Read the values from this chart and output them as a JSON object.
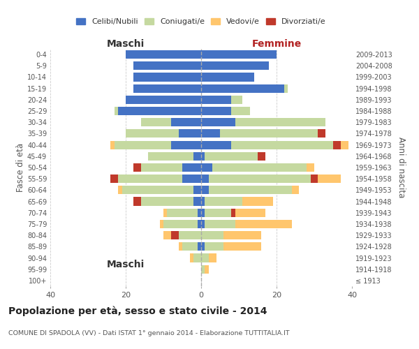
{
  "age_groups": [
    "100+",
    "95-99",
    "90-94",
    "85-89",
    "80-84",
    "75-79",
    "70-74",
    "65-69",
    "60-64",
    "55-59",
    "50-54",
    "45-49",
    "40-44",
    "35-39",
    "30-34",
    "25-29",
    "20-24",
    "15-19",
    "10-14",
    "5-9",
    "0-4"
  ],
  "birth_years": [
    "≤ 1913",
    "1914-1918",
    "1919-1923",
    "1924-1928",
    "1929-1933",
    "1934-1938",
    "1939-1943",
    "1944-1948",
    "1949-1953",
    "1954-1958",
    "1959-1963",
    "1964-1968",
    "1969-1973",
    "1974-1978",
    "1979-1983",
    "1984-1988",
    "1989-1993",
    "1994-1998",
    "1999-2003",
    "2004-2008",
    "2009-2013"
  ],
  "male": {
    "celibi": [
      0,
      0,
      0,
      1,
      0,
      1,
      1,
      2,
      2,
      5,
      5,
      2,
      8,
      6,
      8,
      22,
      20,
      18,
      18,
      18,
      20
    ],
    "coniugati": [
      0,
      0,
      2,
      4,
      6,
      9,
      8,
      14,
      19,
      17,
      11,
      12,
      15,
      14,
      8,
      1,
      0,
      0,
      0,
      0,
      0
    ],
    "vedovi": [
      0,
      0,
      1,
      1,
      2,
      1,
      1,
      0,
      1,
      0,
      0,
      0,
      1,
      0,
      0,
      0,
      0,
      0,
      0,
      0,
      0
    ],
    "divorziati": [
      0,
      0,
      0,
      0,
      2,
      0,
      0,
      2,
      0,
      2,
      2,
      0,
      0,
      0,
      0,
      0,
      0,
      0,
      0,
      0,
      0
    ]
  },
  "female": {
    "nubili": [
      0,
      0,
      0,
      1,
      0,
      1,
      1,
      1,
      2,
      2,
      3,
      1,
      8,
      5,
      9,
      8,
      8,
      22,
      14,
      18,
      20
    ],
    "coniugate": [
      0,
      1,
      2,
      5,
      6,
      8,
      7,
      10,
      22,
      27,
      25,
      14,
      27,
      26,
      24,
      5,
      3,
      1,
      0,
      0,
      0
    ],
    "vedove": [
      0,
      1,
      2,
      10,
      10,
      15,
      8,
      8,
      2,
      6,
      2,
      0,
      2,
      0,
      0,
      0,
      0,
      0,
      0,
      0,
      0
    ],
    "divorziate": [
      0,
      0,
      0,
      0,
      0,
      0,
      1,
      0,
      0,
      2,
      0,
      2,
      2,
      2,
      0,
      0,
      0,
      0,
      0,
      0,
      0
    ]
  },
  "colors": {
    "celibi": "#4472c4",
    "coniugati": "#c5d9a0",
    "vedovi": "#ffc66d",
    "divorziati": "#c0392b"
  },
  "xlim": 40,
  "title": "Popolazione per età, sesso e stato civile - 2014",
  "subtitle": "COMUNE DI SPADOLA (VV) - Dati ISTAT 1° gennaio 2014 - Elaborazione TUTTITALIA.IT",
  "ylabel": "Fasce di età",
  "ylabel_right": "Anni di nascita",
  "xlabel_left": "Maschi",
  "xlabel_right": "Femmine",
  "legend_labels": [
    "Celibi/Nubili",
    "Coniugati/e",
    "Vedovi/e",
    "Divorziati/e"
  ],
  "bg_color": "#ffffff",
  "grid_color": "#cccccc"
}
